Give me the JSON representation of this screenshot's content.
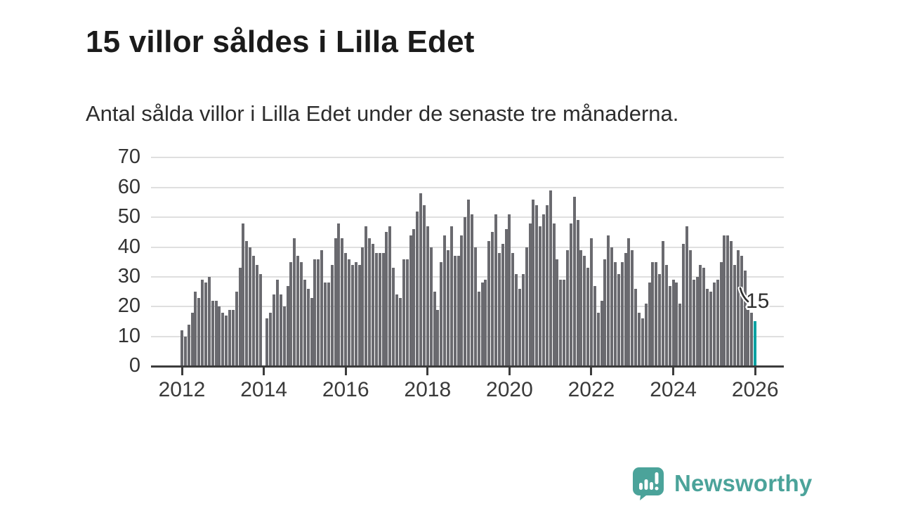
{
  "header": {
    "title": "15 villor såldes i Lilla Edet",
    "subtitle": "Antal sålda villor i Lilla Edet under de senaste tre månaderna."
  },
  "chart_data": {
    "type": "bar",
    "title": "15 villor såldes i Lilla Edet",
    "x_domain": [
      "2012-01",
      "2026-01"
    ],
    "x_tick_labels": [
      "2012",
      "2014",
      "2016",
      "2018",
      "2020",
      "2022",
      "2024",
      "2026"
    ],
    "y_tick_labels": [
      "0",
      "10",
      "20",
      "30",
      "40",
      "50",
      "60",
      "70"
    ],
    "ylim": [
      0,
      70
    ],
    "grid": true,
    "legend": "none",
    "series": [
      {
        "name": "Antal sålda villor (rullande tre månader)",
        "start_month": "2012-01",
        "values": [
          12,
          10,
          14,
          18,
          25,
          23,
          29,
          28,
          30,
          22,
          22,
          20,
          18,
          17,
          19,
          19,
          25,
          33,
          48,
          42,
          40,
          37,
          34,
          31,
          0,
          16,
          18,
          24,
          29,
          24,
          20,
          27,
          35,
          43,
          37,
          35,
          29,
          26,
          23,
          36,
          36,
          39,
          28,
          28,
          34,
          43,
          48,
          43,
          38,
          36,
          34,
          35,
          34,
          40,
          47,
          43,
          41,
          38,
          38,
          38,
          45,
          47,
          33,
          24,
          23,
          36,
          36,
          44,
          46,
          52,
          58,
          54,
          47,
          40,
          25,
          19,
          35,
          44,
          39,
          47,
          37,
          37,
          44,
          50,
          56,
          51,
          40,
          25,
          28,
          29,
          42,
          45,
          51,
          38,
          41,
          46,
          51,
          38,
          31,
          26,
          31,
          40,
          48,
          56,
          54,
          47,
          51,
          54,
          59,
          48,
          36,
          29,
          29,
          39,
          48,
          57,
          49,
          39,
          37,
          33,
          43,
          27,
          18,
          22,
          36,
          44,
          40,
          35,
          31,
          35,
          38,
          43,
          39,
          26,
          18,
          16,
          21,
          28,
          35,
          35,
          31,
          42,
          34,
          27,
          29,
          28,
          21,
          41,
          47,
          39,
          29,
          30,
          34,
          33,
          26,
          25,
          28,
          29,
          35,
          44,
          44,
          42,
          34,
          39,
          37,
          32,
          19,
          18,
          15
        ]
      }
    ],
    "highlight_index": 168,
    "highlight_value": 15,
    "annotation": "15",
    "colors": {
      "bar": "#6a6a6f",
      "highlight": "#00a1a1",
      "axis": "#3c3c3c",
      "grid": "#dfdfdf",
      "annotation_text": "#2e2e2e"
    }
  },
  "footer": {
    "brand": "Newsworthy",
    "brand_color": "#4ba39a",
    "logo_icon": "newsworthy-speech-bubble-bar-chart-icon"
  }
}
